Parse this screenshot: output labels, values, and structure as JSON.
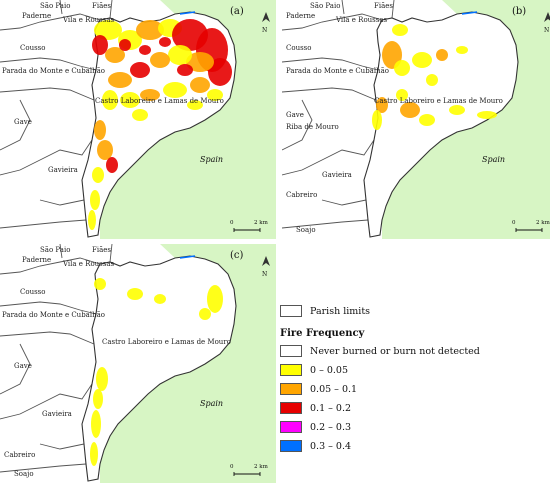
{
  "panels": [
    {
      "letter": "(a)"
    },
    {
      "letter": "(b)"
    },
    {
      "letter": "(c)"
    }
  ],
  "place_names": {
    "sao_paio": "São Paio",
    "paderne": "Paderne",
    "vila_roussas": "Vila e Roussas",
    "fiaes": "Fiães",
    "cousso": "Cousso",
    "parada": "Parada do Monte e Cubalhão",
    "castro": "Castro Laboreiro e Lamas de Mouro",
    "gave": "Gave",
    "gavieira": "Gavieira",
    "riba_mouro": "Riba de Mouro",
    "cabreiro": "Cabreiro",
    "soajo": "Soajo",
    "spain": "Spain",
    "spain_b": "Spain"
  },
  "scale": {
    "zero": "0",
    "dist": "2 km"
  },
  "north": "N",
  "legend": {
    "parish_limits": "Parish limits",
    "title": "Fire Frequency",
    "classes": [
      {
        "label": "Never burned or burn not detected",
        "color": "#ffffff"
      },
      {
        "label": "0 – 0.05",
        "color": "#ffff00"
      },
      {
        "label": "0.05 – 0.1",
        "color": "#ffa500"
      },
      {
        "label": "0.1 – 0.2",
        "color": "#e60000"
      },
      {
        "label": "0.2 – 0.3",
        "color": "#ff00ff"
      },
      {
        "label": "0.3 – 0.4",
        "color": "#0070ff"
      }
    ]
  },
  "colors": {
    "spain_fill": "#d7f5c4",
    "border": "#555555",
    "outline": "#333333"
  }
}
